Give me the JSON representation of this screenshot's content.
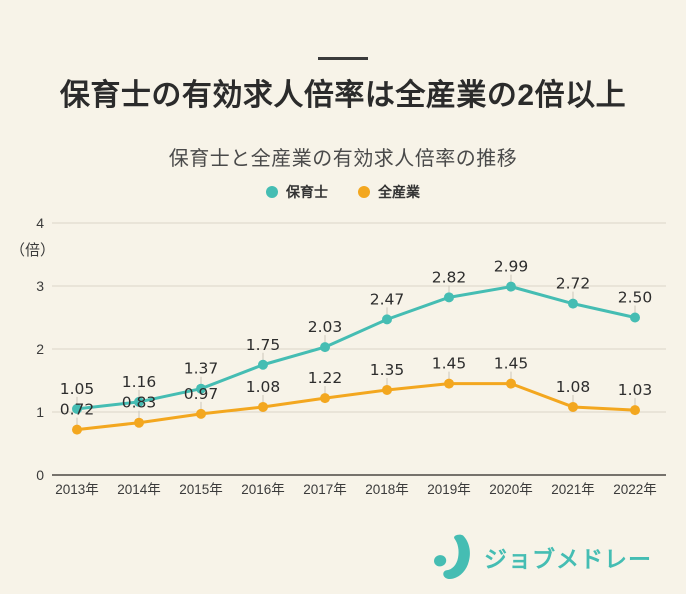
{
  "header": {
    "title": "保育士の有効求人倍率は全産業の2倍以上",
    "subtitle": "保育士と全産業の有効求人倍率の推移"
  },
  "chart_data": {
    "type": "line",
    "categories": [
      "2013年",
      "2014年",
      "2015年",
      "2016年",
      "2017年",
      "2018年",
      "2019年",
      "2020年",
      "2021年",
      "2022年"
    ],
    "series": [
      {
        "name": "全産業",
        "color": "#f3a71f",
        "values": [
          0.72,
          0.83,
          0.97,
          1.08,
          1.22,
          1.35,
          1.45,
          1.45,
          1.08,
          1.03
        ]
      },
      {
        "name": "保育士",
        "color": "#45bdb3",
        "values": [
          1.05,
          1.16,
          1.37,
          1.75,
          2.03,
          2.47,
          2.82,
          2.99,
          2.72,
          2.5
        ]
      }
    ],
    "legend_order": [
      "保育士",
      "全産業"
    ],
    "ylabel": "（倍）",
    "yticks": [
      0,
      1,
      2,
      3,
      4
    ],
    "ylim": [
      0,
      4
    ],
    "grid": true,
    "legend_position": "top",
    "value_decimals": 2
  },
  "footer": {
    "brand": "ジョブメドレー"
  },
  "colors": {
    "background": "#f7f3e8",
    "brand_teal": "#45bdb3",
    "accent_orange": "#f3a71f",
    "grid_line": "#dbd6c8",
    "axis_line": "#4b4843",
    "leader_line": "#ccc7ba",
    "label_text": "#2d2d2d",
    "tick_text": "#3b3b3b"
  }
}
